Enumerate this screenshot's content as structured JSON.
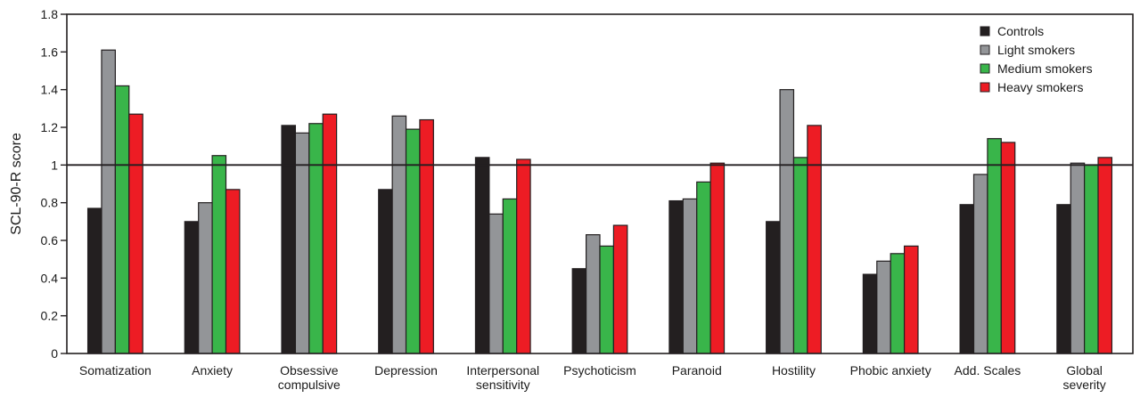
{
  "chart_data": {
    "type": "bar",
    "title": "",
    "xlabel": "",
    "ylabel": "SCL-90-R score",
    "ylim": [
      0,
      1.8
    ],
    "yticks": [
      "0",
      "0.2",
      "0.4",
      "0.6",
      "0.8",
      "1",
      "1.2",
      "1.4",
      "1.6",
      "1.8"
    ],
    "reference_line": 1,
    "legend_position": "top-right",
    "categories": [
      [
        "Somatization"
      ],
      [
        "Anxiety"
      ],
      [
        "Obsessive",
        "compulsive"
      ],
      [
        "Depression"
      ],
      [
        "Interpersonal",
        "sensitivity"
      ],
      [
        "Psychoticism"
      ],
      [
        "Paranoid"
      ],
      [
        "Hostility"
      ],
      [
        "Phobic anxiety"
      ],
      [
        "Add. Scales"
      ],
      [
        "Global",
        "severity"
      ]
    ],
    "series": [
      {
        "name": "Controls",
        "color": "#231f20",
        "values": [
          0.77,
          0.7,
          1.21,
          0.87,
          1.04,
          0.45,
          0.81,
          0.7,
          0.42,
          0.79,
          0.79
        ]
      },
      {
        "name": "Light smokers",
        "color": "#939598",
        "values": [
          1.61,
          0.8,
          1.17,
          1.26,
          0.74,
          0.63,
          0.82,
          1.4,
          0.49,
          0.95,
          1.01
        ]
      },
      {
        "name": "Medium smokers",
        "color": "#39b54a",
        "values": [
          1.42,
          1.05,
          1.22,
          1.19,
          0.82,
          0.57,
          0.91,
          1.04,
          0.53,
          1.14,
          1.0
        ]
      },
      {
        "name": "Heavy smokers",
        "color": "#ed1c24",
        "values": [
          1.27,
          0.87,
          1.27,
          1.24,
          1.03,
          0.68,
          1.01,
          1.21,
          0.57,
          1.12,
          1.04
        ]
      }
    ]
  }
}
